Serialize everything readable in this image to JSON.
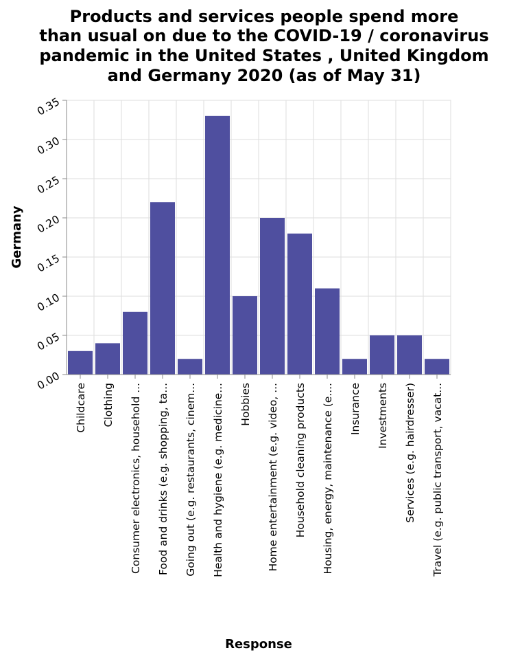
{
  "colors": {
    "bar": "#4f4f9f",
    "grid": "#dddddd",
    "axis": "#888888",
    "background": "#ffffff"
  },
  "chart_data": {
    "type": "bar",
    "title": "Products and services people spend more than usual on due to the COVID-19 / coronavirus pandemic in the United States , United Kingdom and Germany 2020 (as of May 31)",
    "title_lines": [
      "Products and services people spend more",
      "than usual on due to the COVID-19 / coronavirus",
      "pandemic in the United States , United Kingdom",
      "and Germany 2020 (as of May 31)"
    ],
    "xlabel": "Response",
    "ylabel": "Germany",
    "ylim": [
      0,
      0.35
    ],
    "yticks": [
      "0.00",
      "0.05",
      "0.10",
      "0.15",
      "0.20",
      "0.25",
      "0.30",
      "0.35"
    ],
    "ytick_values": [
      0,
      0.05,
      0.1,
      0.15,
      0.2,
      0.25,
      0.3,
      0.35
    ],
    "grid": true,
    "categories": [
      "Childcare",
      "Clothing",
      "Consumer electronics, household ...",
      "Food and drinks (e.g. shopping, ta...",
      "Going out (e.g. restaurants, cinem...",
      "Health and hygiene (e.g. medicine...",
      "Hobbies",
      "Home entertainment (e.g. video, ...",
      "Household cleaning products",
      "Housing, energy, maintenance (e....",
      "Insurance",
      "Investments",
      "Services (e.g. hairdresser)",
      "Travel (e.g. public transport, vacat..."
    ],
    "values": [
      0.03,
      0.04,
      0.08,
      0.22,
      0.02,
      0.33,
      0.1,
      0.2,
      0.18,
      0.11,
      0.02,
      0.05,
      0.05,
      0.02
    ]
  }
}
